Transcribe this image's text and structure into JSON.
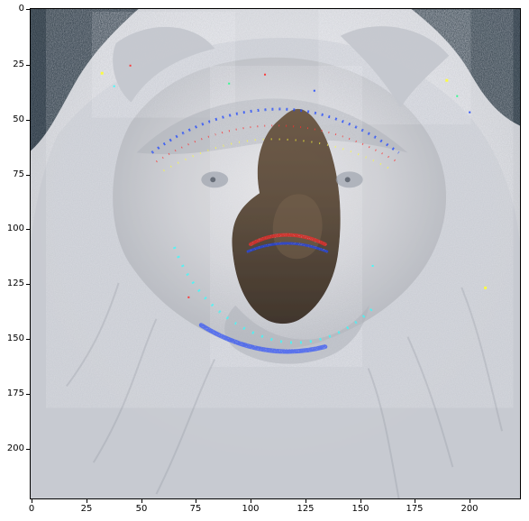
{
  "image": {
    "description_free_values": true,
    "x_ticks": [
      "0",
      "25",
      "50",
      "75",
      "100",
      "125",
      "150",
      "175",
      "200"
    ],
    "y_ticks": [
      "0",
      "25",
      "50",
      "75",
      "100",
      "125",
      "150",
      "175",
      "200"
    ],
    "x_range": [
      0,
      224
    ],
    "y_range": [
      0,
      224
    ],
    "colors": {
      "fur_light": "#d7d7d9",
      "fur_mid": "#b8b8bc",
      "face_shadow": "#c9cbd0",
      "nose": "#5a4938",
      "nose_highlight": "#7d6750",
      "dark_bg": "#1d2c38",
      "accent_red": "#ff2a2a",
      "accent_yellow": "#ffff33",
      "accent_blue": "#1e46ff",
      "accent_cyan": "#33ffff",
      "accent_green": "#22ff88"
    }
  }
}
